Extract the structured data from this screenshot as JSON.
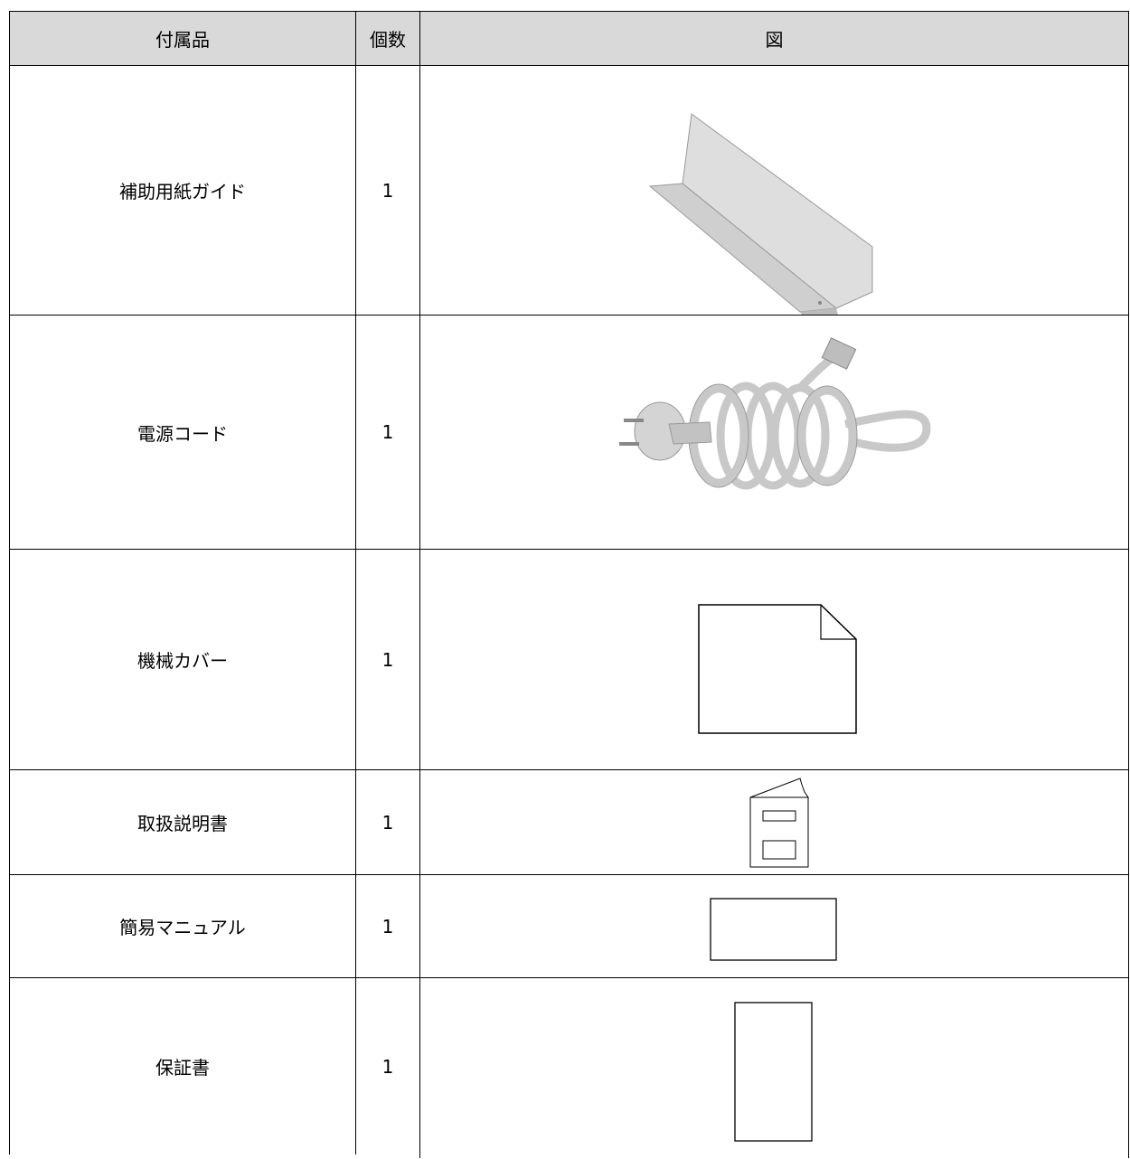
{
  "table": {
    "header": [
      "付属品",
      "個数",
      "図"
    ],
    "rows": [
      [
        "補助用紙ガイド",
        1
      ],
      [
        "電源コード",
        1
      ],
      [
        "機械カバー",
        1
      ],
      [
        "取扱説明書",
        1
      ],
      [
        "簡易マニュアル",
        1
      ],
      [
        "保証書",
        1
      ]
    ]
  }
}
